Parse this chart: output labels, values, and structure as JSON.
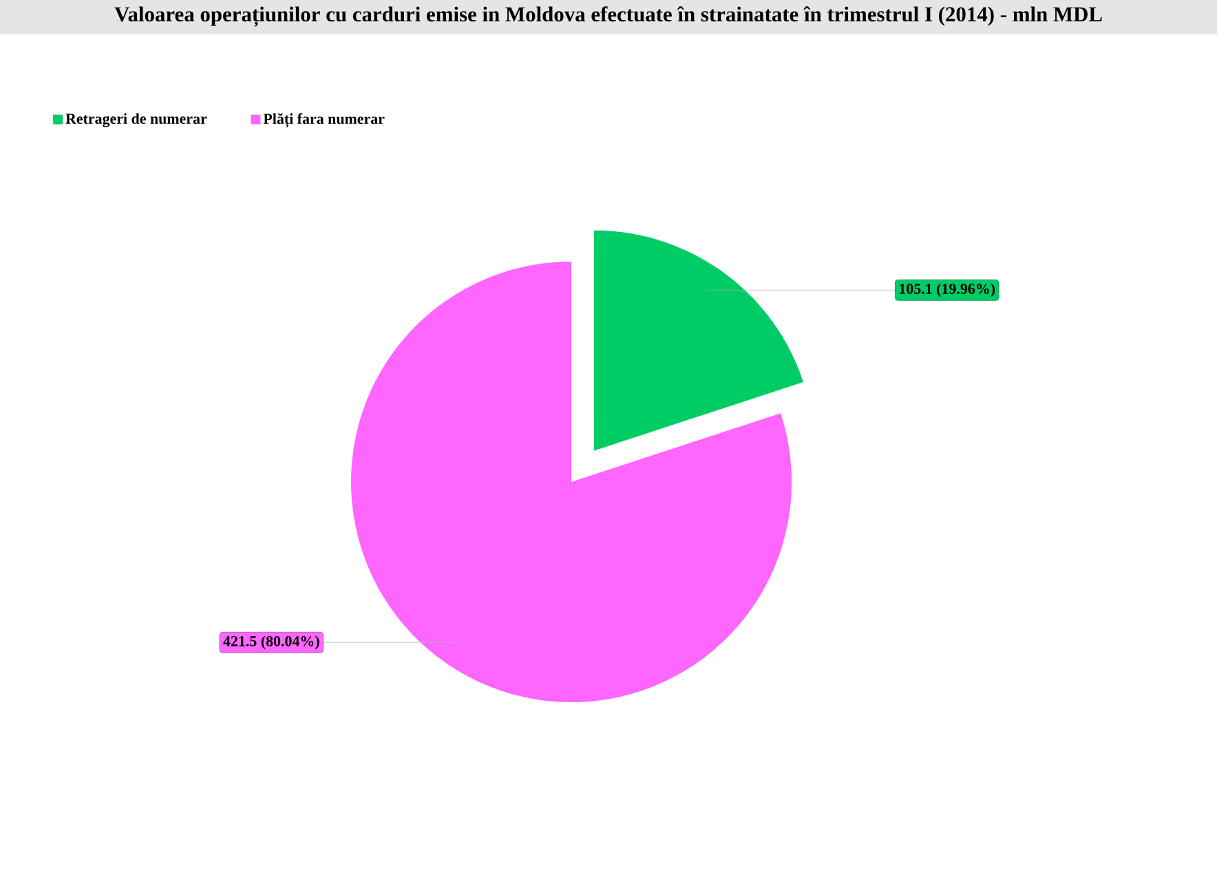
{
  "chart_data": {
    "type": "pie",
    "title": "Valoarea operațiunilor cu carduri emise in Moldova efectuate în strainatate în trimestrul I (2014) - mln MDL",
    "categories": [
      "Retrageri de numerar",
      "Plăți fara numerar"
    ],
    "values": [
      105.1,
      421.5
    ],
    "colors": [
      "#00cc66",
      "#ff66ff"
    ],
    "value_labels": [
      "105.1 (19.96%)",
      "421.5 (80.04%)"
    ],
    "legend": "top left"
  }
}
